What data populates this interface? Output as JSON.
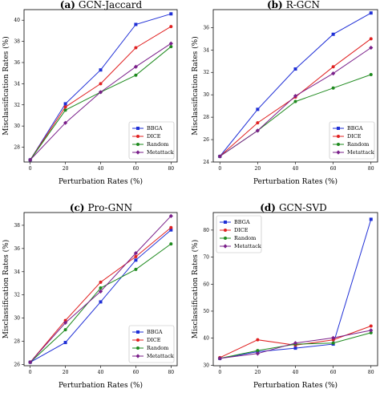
{
  "figure": {
    "panels": [
      {
        "letter": "(a)",
        "name": "GCN-Jaccard",
        "xlabel": "Perturbation Rates (%)",
        "ylabel": "Misclassification Rates (%)"
      },
      {
        "letter": "(b)",
        "name": "R-GCN",
        "xlabel": "Perturbation Rates (%)",
        "ylabel": "Misclassification Rates (%)"
      },
      {
        "letter": "(c)",
        "name": "Pro-GNN",
        "xlabel": "Perturbation Rates (%)",
        "ylabel": "Misclassification Rates (%)"
      },
      {
        "letter": "(d)",
        "name": "GCN-SVD",
        "xlabel": "Perturbation Rates (%)",
        "ylabel": "Misclassification Rates (%)"
      }
    ]
  },
  "colors": {
    "BBGA": "#1f2fd6",
    "DICE": "#e02020",
    "Random": "#1e8a1e",
    "Metattack": "#7a1f8a"
  },
  "chart_data": [
    {
      "type": "line",
      "title": "GCN-Jaccard",
      "xlabel": "Perturbation Rates (%)",
      "ylabel": "Misclassification Rates (%)",
      "x": [
        0,
        20,
        40,
        60,
        80
      ],
      "xticks": [
        "0",
        "20",
        "40",
        "60",
        "80"
      ],
      "ylim": [
        26.6,
        41.0
      ],
      "yticks": [
        28,
        30,
        32,
        34,
        36,
        38,
        40
      ],
      "legend_position": "bottom-right",
      "grid": false,
      "series": [
        {
          "name": "BBGA",
          "values": [
            26.8,
            32.1,
            35.3,
            39.6,
            40.6
          ]
        },
        {
          "name": "DICE",
          "values": [
            26.8,
            31.8,
            34.0,
            37.4,
            39.4
          ]
        },
        {
          "name": "Random",
          "values": [
            26.8,
            31.5,
            33.2,
            34.8,
            37.5
          ]
        },
        {
          "name": "Metattack",
          "values": [
            26.8,
            30.3,
            33.2,
            35.6,
            37.8
          ]
        }
      ]
    },
    {
      "type": "line",
      "title": "R-GCN",
      "xlabel": "Perturbation Rates (%)",
      "ylabel": "Misclassification Rates (%)",
      "x": [
        0,
        20,
        40,
        60,
        80
      ],
      "xticks": [
        "0",
        "20",
        "40",
        "60",
        "80"
      ],
      "ylim": [
        24.0,
        37.6
      ],
      "yticks": [
        24,
        26,
        28,
        30,
        32,
        34,
        36
      ],
      "legend_position": "bottom-right",
      "grid": false,
      "series": [
        {
          "name": "BBGA",
          "values": [
            24.5,
            28.7,
            32.3,
            35.4,
            37.3
          ]
        },
        {
          "name": "DICE",
          "values": [
            24.5,
            27.5,
            29.8,
            32.5,
            35.0
          ]
        },
        {
          "name": "Random",
          "values": [
            24.5,
            26.8,
            29.4,
            30.6,
            31.8
          ]
        },
        {
          "name": "Metattack",
          "values": [
            24.5,
            26.8,
            29.9,
            31.9,
            34.2
          ]
        }
      ]
    },
    {
      "type": "line",
      "title": "Pro-GNN",
      "xlabel": "Perturbation Rates (%)",
      "ylabel": "Misclassification Rates (%)",
      "x": [
        0,
        20,
        40,
        60,
        80
      ],
      "xticks": [
        "0",
        "20",
        "40",
        "60",
        "80"
      ],
      "ylim": [
        25.9,
        39.1
      ],
      "yticks": [
        26,
        28,
        30,
        32,
        34,
        36,
        38
      ],
      "legend_position": "bottom-right",
      "grid": false,
      "series": [
        {
          "name": "BBGA",
          "values": [
            26.2,
            27.9,
            31.4,
            35.0,
            37.6
          ]
        },
        {
          "name": "DICE",
          "values": [
            26.2,
            29.8,
            33.1,
            35.3,
            37.8
          ]
        },
        {
          "name": "Random",
          "values": [
            26.2,
            29.0,
            32.6,
            34.2,
            36.4
          ]
        },
        {
          "name": "Metattack",
          "values": [
            26.2,
            29.6,
            32.3,
            35.6,
            38.8
          ]
        }
      ]
    },
    {
      "type": "line",
      "title": "GCN-SVD",
      "xlabel": "Perturbation Rates (%)",
      "ylabel": "Misclassification Rates (%)",
      "x": [
        0,
        20,
        40,
        60,
        80
      ],
      "xticks": [
        "0",
        "20",
        "40",
        "60",
        "80"
      ],
      "ylim": [
        29.8,
        86.5
      ],
      "yticks": [
        30,
        40,
        50,
        60,
        70,
        80
      ],
      "legend_position": "top-left",
      "grid": false,
      "series": [
        {
          "name": "BBGA",
          "values": [
            32.5,
            35.0,
            36.3,
            37.8,
            84.0
          ]
        },
        {
          "name": "DICE",
          "values": [
            32.8,
            39.4,
            37.4,
            39.4,
            44.5
          ]
        },
        {
          "name": "Random",
          "values": [
            32.5,
            35.4,
            37.8,
            38.2,
            42.0
          ]
        },
        {
          "name": "Metattack",
          "values": [
            32.5,
            34.3,
            38.2,
            40.1,
            42.9
          ]
        }
      ]
    }
  ]
}
